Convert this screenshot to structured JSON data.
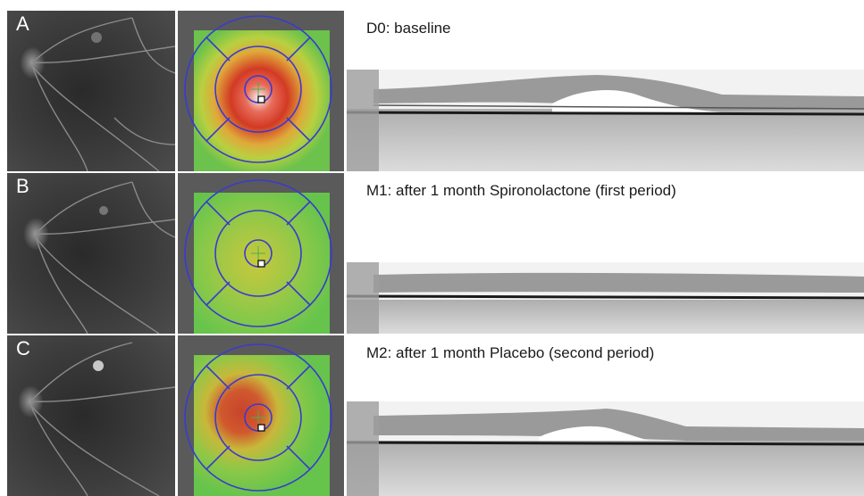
{
  "panels": [
    {
      "letter": "A",
      "caption": "D0: baseline",
      "map": "large-red-central",
      "oct": "large-detachment"
    },
    {
      "letter": "B",
      "caption": "M1: after 1 month Spironolactone (first period)",
      "map": "green-uniform",
      "oct": "flat"
    },
    {
      "letter": "C",
      "caption": "M2: after 1 month Placebo (second period)",
      "map": "red-superotemporal",
      "oct": "small-detachment"
    }
  ],
  "colors": {
    "fundus_bg": "#3a3a3a",
    "map_green": "#7ec850",
    "map_yellow": "#d4d43a",
    "map_red": "#d8402c",
    "grid_blue": "#3a3ad0",
    "oct_bg": "#f4f4f4"
  }
}
